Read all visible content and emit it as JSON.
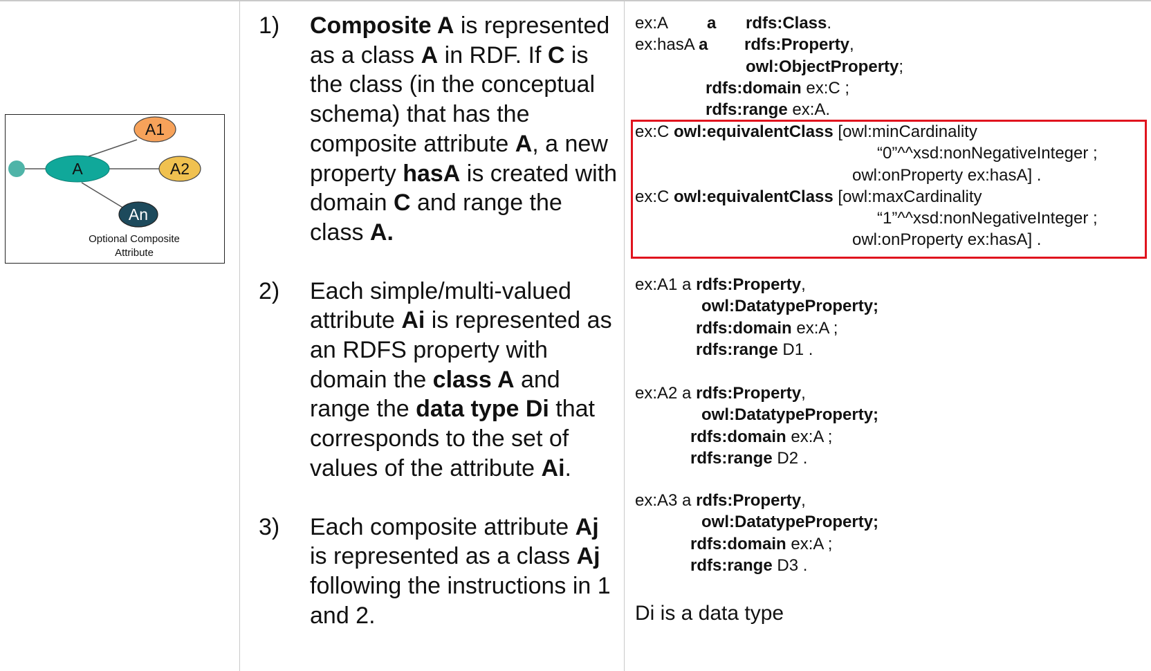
{
  "diagram": {
    "caption_line1": "Optional Composite",
    "caption_line2": "Attribute",
    "node_a": "A",
    "node_a1": "A1",
    "node_a2": "A2",
    "node_an": "An",
    "colors": {
      "a": "#10a89a",
      "a1": "#f7a25a",
      "a2": "#f0c150",
      "an": "#1d4a5c",
      "dot": "#4fb4a8"
    }
  },
  "steps": [
    {
      "num": "1)",
      "parts": [
        {
          "t": "Composite A",
          "b": true
        },
        {
          "t": " is represented as a class  "
        },
        {
          "t": "A",
          "b": true
        },
        {
          "t": " in RDF. If "
        },
        {
          "t": "C",
          "b": true
        },
        {
          "t": " is the class (in the conceptual schema) that has the composite attribute "
        },
        {
          "t": "A",
          "b": true
        },
        {
          "t": ", a new property "
        },
        {
          "t": "hasA",
          "b": true
        },
        {
          "t": " is created with domain "
        },
        {
          "t": "C",
          "b": true
        },
        {
          "t": " and range the class "
        },
        {
          "t": "A.",
          "b": true
        }
      ]
    },
    {
      "num": "2)",
      "parts": [
        {
          "t": "Each simple/multi-valued attribute "
        },
        {
          "t": "Ai",
          "b": true
        },
        {
          "t": "  is represented as an RDFS property with domain the "
        },
        {
          "t": "class A",
          "b": true
        },
        {
          "t": " and range the "
        },
        {
          "t": "data type Di",
          "b": true
        },
        {
          "t": " that corresponds to the set of values of the attribute "
        },
        {
          "t": "Ai",
          "b": true
        },
        {
          "t": "."
        }
      ]
    },
    {
      "num": "3)",
      "parts": [
        {
          "t": "Each composite attribute "
        },
        {
          "t": "Aj",
          "b": true
        },
        {
          "t": "  is represented as a class "
        },
        {
          "t": "Aj",
          "b": true
        },
        {
          "t": " following the instructions in 1 and 2."
        }
      ]
    }
  ],
  "code_blocks": [
    {
      "lines": [
        {
          "indent": 0,
          "parts": [
            {
              "t": "ex:A"
            }
          ]
        },
        {
          "indent": 0,
          "parts": [
            {
              "t": "ex:hasA "
            },
            {
              "t": "a",
              "b": true
            }
          ]
        },
        {
          "indent": 160,
          "parts": [
            {
              "t": "owl:ObjectProperty",
              "b": true
            },
            {
              "t": ";"
            }
          ]
        },
        {
          "indent": 102,
          "parts": [
            {
              "t": "rdfs:domain",
              "b": true
            },
            {
              "t": " ex:C ;"
            }
          ]
        },
        {
          "indent": 102,
          "parts": [
            {
              "t": "rdfs:range",
              "b": true
            },
            {
              "t": "    ex:A."
            }
          ]
        }
      ],
      "extras": [
        {
          "line": 0,
          "x": 104,
          "parts": [
            {
              "t": "a",
              "b": true
            }
          ]
        },
        {
          "line": 0,
          "x": 160,
          "parts": [
            {
              "t": "rdfs:Class",
              "b": true
            },
            {
              "t": "."
            }
          ]
        },
        {
          "line": 1,
          "x": 158,
          "parts": [
            {
              "t": "rdfs:Property",
              "b": true
            },
            {
              "t": ","
            }
          ]
        }
      ]
    },
    {
      "lines": [
        {
          "indent": 0,
          "parts": [
            {
              "t": "ex:C "
            },
            {
              "t": "owl:equivalentClass",
              "b": true
            },
            {
              "t": " [owl:minCardinality"
            }
          ]
        },
        {
          "indent": 350,
          "parts": [
            {
              "t": "“0”^^xsd:nonNegativeInteger ;"
            }
          ]
        },
        {
          "indent": 314,
          "parts": [
            {
              "t": "owl:onProperty ex:hasA] ."
            }
          ]
        },
        {
          "indent": 0,
          "parts": [
            {
              "t": "ex:C "
            },
            {
              "t": "owl:equivalentClass",
              "b": true
            },
            {
              "t": " [owl:maxCardinality"
            }
          ]
        },
        {
          "indent": 350,
          "parts": [
            {
              "t": "“1”^^xsd:nonNegativeInteger ;"
            }
          ]
        },
        {
          "indent": 314,
          "parts": [
            {
              "t": "owl:onProperty ex:hasA] ."
            }
          ]
        }
      ]
    },
    {
      "lines": [
        {
          "indent": 0,
          "parts": [
            {
              "t": "ex:A1 a "
            },
            {
              "t": "rdfs:Property",
              "b": true
            },
            {
              "t": ","
            }
          ]
        },
        {
          "indent": 96,
          "parts": [
            {
              "t": "owl:DatatypeProperty;",
              "b": true
            }
          ]
        },
        {
          "indent": 88,
          "parts": [
            {
              "t": "rdfs:domain",
              "b": true
            },
            {
              "t": " ex:A ;"
            }
          ]
        },
        {
          "indent": 88,
          "parts": [
            {
              "t": "rdfs:range",
              "b": true
            },
            {
              "t": "    D1 ."
            }
          ]
        }
      ]
    },
    {
      "lines": [
        {
          "indent": 0,
          "parts": [
            {
              "t": "ex:A2 a "
            },
            {
              "t": "rdfs:Property",
              "b": true
            },
            {
              "t": ","
            }
          ]
        },
        {
          "indent": 96,
          "parts": [
            {
              "t": "owl:DatatypeProperty;",
              "b": true
            }
          ]
        },
        {
          "indent": 80,
          "parts": [
            {
              "t": "rdfs:domain",
              "b": true
            },
            {
              "t": " ex:A ;"
            }
          ]
        },
        {
          "indent": 80,
          "parts": [
            {
              "t": "rdfs:range",
              "b": true
            },
            {
              "t": "    D2 ."
            }
          ]
        }
      ]
    },
    {
      "lines": [
        {
          "indent": 0,
          "parts": [
            {
              "t": "ex:A3 a "
            },
            {
              "t": "rdfs:Property",
              "b": true
            },
            {
              "t": ","
            }
          ]
        },
        {
          "indent": 96,
          "parts": [
            {
              "t": "owl:DatatypeProperty;",
              "b": true
            }
          ]
        },
        {
          "indent": 80,
          "parts": [
            {
              "t": "rdfs:domain",
              "b": true
            },
            {
              "t": " ex:A ;"
            }
          ]
        },
        {
          "indent": 80,
          "parts": [
            {
              "t": "rdfs:range",
              "b": true
            },
            {
              "t": "    D3 ."
            }
          ]
        }
      ]
    }
  ],
  "note": "Di is a data type",
  "highlight_color": "#e0141e"
}
